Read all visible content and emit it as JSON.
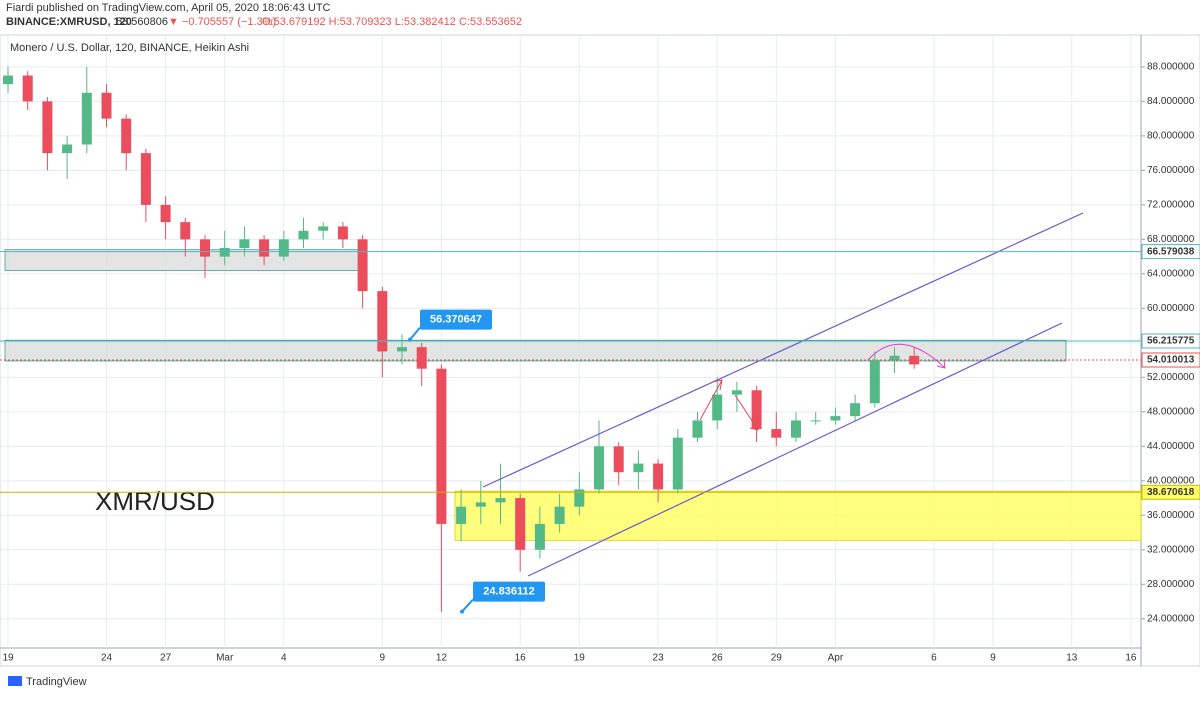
{
  "header": {
    "publisher": "Fiardi published on TradingView.com, April 05, 2020 18:06:43 UTC",
    "symbol": "BINANCE:XMRUSD, 120",
    "last": "53.560806",
    "change": "▼ −0.705557 (−1.3%)",
    "ohlc": "O:53.679192 H:53.709323 L:53.382412 C:53.553652"
  },
  "footer": "TradingView",
  "chart_data": {
    "type": "candlestick",
    "title": "Monero / U.S. Dollar, 120, BINANCE, Heikin Ashi",
    "label": "XMR/USD",
    "categories": [
      "19",
      null,
      null,
      null,
      null,
      "24",
      null,
      null,
      "27",
      null,
      null,
      "Mar",
      null,
      null,
      "4",
      null,
      null,
      null,
      null,
      "9",
      null,
      null,
      "12",
      null,
      null,
      null,
      "16",
      null,
      null,
      "19",
      null,
      null,
      null,
      "23",
      null,
      null,
      "26",
      null,
      null,
      "29",
      null,
      null,
      "Apr",
      null,
      null,
      null,
      null,
      "6",
      null,
      null,
      "9",
      null,
      null,
      null,
      "13",
      null,
      null,
      "16"
    ],
    "open": [
      86,
      87,
      84,
      78,
      79,
      85,
      82,
      78,
      72,
      70,
      68,
      66,
      67,
      68,
      66,
      68,
      69,
      69.5,
      68,
      62,
      55,
      55.5,
      53,
      35,
      37,
      37.5,
      38,
      32,
      35,
      37,
      39,
      44,
      41,
      42,
      39,
      45,
      47,
      50,
      50.5,
      46,
      45,
      47,
      47,
      47.5,
      49,
      54,
      54.5,
      null,
      null,
      null,
      null,
      null,
      null,
      null,
      null,
      null,
      null,
      null
    ],
    "high": [
      88,
      87.5,
      84.5,
      80,
      88,
      86,
      82.5,
      78.5,
      73,
      70.5,
      68.5,
      69,
      69.5,
      68.5,
      69,
      70.5,
      70,
      70,
      68.5,
      62.5,
      57,
      56,
      53.5,
      39,
      40,
      42,
      38.5,
      37,
      38.5,
      41,
      47,
      44.5,
      43.5,
      42.5,
      46,
      48,
      52,
      51.5,
      51,
      48,
      48,
      48,
      48.5,
      50,
      55,
      55.5,
      55.5,
      null,
      null,
      null,
      null,
      null,
      null,
      null,
      null,
      null,
      null,
      null
    ],
    "low": [
      85,
      83,
      76,
      75,
      78,
      81,
      76,
      70,
      68,
      66,
      63.5,
      65,
      66,
      65,
      65.5,
      67,
      68,
      67,
      60,
      52,
      53.5,
      51,
      24.8,
      33,
      35,
      35,
      29.5,
      31,
      34,
      36,
      38.5,
      39.5,
      39,
      37.5,
      38.5,
      44.5,
      46,
      48,
      44.5,
      44,
      44.5,
      46.5,
      46.5,
      47,
      48.5,
      52.5,
      53,
      null,
      null,
      null,
      null,
      null,
      null,
      null,
      null,
      null,
      null,
      null
    ],
    "close": [
      87,
      84,
      78,
      79,
      85,
      82,
      78,
      72,
      70,
      68,
      66,
      67,
      68,
      66,
      68,
      69,
      69.5,
      68,
      62,
      55,
      55.5,
      53,
      35,
      37,
      37.5,
      38,
      32,
      35,
      37,
      39,
      44,
      41,
      42,
      39,
      45,
      47,
      50,
      50.5,
      46,
      45,
      47,
      47,
      47.5,
      49,
      54,
      54.5,
      53.5,
      null,
      null,
      null,
      null,
      null,
      null,
      null,
      null,
      null,
      null,
      null
    ],
    "up_color": "#53b987",
    "down_color": "#eb4d5c",
    "ylim": [
      19.8,
      91.7
    ],
    "yticks": [
      {
        "value": 24,
        "label": "24.000000"
      },
      {
        "value": 28,
        "label": "28.000000"
      },
      {
        "value": 32,
        "label": "32.000000"
      },
      {
        "value": 36,
        "label": "36.000000"
      },
      {
        "value": 40,
        "label": "40.000000"
      },
      {
        "value": 44,
        "label": "44.000000"
      },
      {
        "value": 48,
        "label": "48.000000"
      },
      {
        "value": 52,
        "label": "52.000000"
      },
      {
        "value": 56,
        "label": "56.000000"
      },
      {
        "value": 60,
        "label": "60.000000"
      },
      {
        "value": 64,
        "label": "64.000000"
      },
      {
        "value": 68,
        "label": "68.000000"
      },
      {
        "value": 72,
        "label": "72.000000"
      },
      {
        "value": 76,
        "label": "76.000000"
      },
      {
        "value": 80,
        "label": "80.000000"
      },
      {
        "value": 84,
        "label": "84.000000"
      },
      {
        "value": 88,
        "label": "88.000000"
      }
    ],
    "grid": true,
    "zones": [
      {
        "low": 64.4,
        "high": 66.8,
        "color": "#dcdedd"
      },
      {
        "low": 53.9,
        "high": 56.3,
        "color": "#dcdedd"
      },
      {
        "low": 33.1,
        "high": 38.8,
        "color": "#ffff66"
      }
    ],
    "price_lines": [
      {
        "value": 66.579038,
        "color": "#4fb6c4"
      },
      {
        "value": 56.215775,
        "color": "#4fb6c4"
      },
      {
        "value": 54.010013,
        "color": "#ef5350"
      },
      {
        "value": 38.670618,
        "color": "#c9b800"
      }
    ],
    "callouts": [
      {
        "value": 56.370647
      },
      {
        "value": 24.836112
      }
    ]
  }
}
